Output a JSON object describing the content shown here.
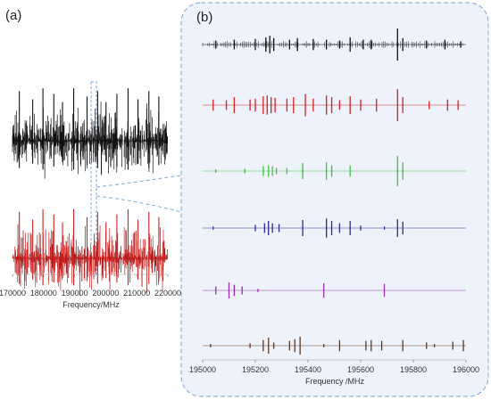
{
  "panel_a": {
    "label": "(a)",
    "xlabel": "Frequency/MHz"
  },
  "panel_b": {
    "label": "(b)",
    "xlabel": "Frequency /MHz"
  },
  "colors": {
    "black": "#111111",
    "red": "#d42020",
    "brown": "#8a3a2a",
    "green": "#3fbf3f",
    "blue": "#2b2b9a",
    "purple": "#9a2fb8",
    "dark_brown": "#5a3a2a",
    "zoom_box": "#7aa7d6",
    "zoom_fill": "#eef2fa"
  },
  "chart_data": [
    {
      "type": "line",
      "panel": "(a)",
      "xlabel": "Frequency/MHz",
      "xlim": [
        170000,
        220000
      ],
      "xticks": [
        170000,
        180000,
        190000,
        200000,
        210000,
        220000
      ],
      "series": [
        {
          "color": "black",
          "peaks": [
            [
              172200,
              0.9
            ],
            [
              176500,
              0.75
            ],
            [
              179800,
              0.95
            ],
            [
              183300,
              0.85
            ],
            [
              186100,
              0.7
            ],
            [
              189700,
              0.95
            ],
            [
              194000,
              0.8
            ],
            [
              197400,
              0.9
            ],
            [
              200100,
              0.7
            ],
            [
              203600,
              0.85
            ],
            [
              207200,
              0.95
            ],
            [
              210400,
              0.75
            ],
            [
              213900,
              0.9
            ],
            [
              217100,
              0.8
            ]
          ]
        },
        {
          "color": "red",
          "peaks": [
            [
              172200,
              0.9
            ],
            [
              176500,
              0.75
            ],
            [
              179800,
              0.95
            ],
            [
              183300,
              0.85
            ],
            [
              186100,
              0.7
            ],
            [
              189700,
              0.95
            ],
            [
              194000,
              0.8
            ],
            [
              197400,
              0.9
            ],
            [
              200100,
              0.7
            ],
            [
              203600,
              0.85
            ],
            [
              207200,
              0.95
            ],
            [
              210400,
              0.75
            ],
            [
              213900,
              0.9
            ],
            [
              217100,
              0.8
            ]
          ]
        }
      ],
      "zoom_region": [
        195000,
        196000
      ]
    },
    {
      "type": "line",
      "panel": "(b)",
      "xlabel": "Frequency /MHz",
      "xlim": [
        195000,
        196000
      ],
      "xticks": [
        195000,
        195200,
        195400,
        195600,
        195800,
        196000
      ],
      "series": [
        {
          "color": "black",
          "peaks": [
            [
              195050,
              0.25
            ],
            [
              195120,
              0.3
            ],
            [
              195200,
              0.35
            ],
            [
              195240,
              0.45
            ],
            [
              195255,
              0.55
            ],
            [
              195270,
              0.4
            ],
            [
              195330,
              0.3
            ],
            [
              195360,
              0.4
            ],
            [
              195420,
              0.35
            ],
            [
              195470,
              0.3
            ],
            [
              195520,
              0.25
            ],
            [
              195560,
              0.45
            ],
            [
              195610,
              0.3
            ],
            [
              195640,
              0.3
            ],
            [
              195740,
              1.0
            ],
            [
              195760,
              0.4
            ],
            [
              195850,
              0.25
            ],
            [
              195920,
              0.3
            ],
            [
              195980,
              0.2
            ]
          ]
        },
        {
          "color": "red",
          "peaks": [
            [
              195040,
              0.35
            ],
            [
              195090,
              0.3
            ],
            [
              195120,
              0.5
            ],
            [
              195180,
              0.35
            ],
            [
              195200,
              0.4
            ],
            [
              195230,
              0.55
            ],
            [
              195245,
              0.6
            ],
            [
              195260,
              0.5
            ],
            [
              195275,
              0.45
            ],
            [
              195320,
              0.4
            ],
            [
              195345,
              0.5
            ],
            [
              195390,
              0.7
            ],
            [
              195420,
              0.4
            ],
            [
              195470,
              0.6
            ],
            [
              195490,
              0.5
            ],
            [
              195520,
              0.3
            ],
            [
              195560,
              0.55
            ],
            [
              195600,
              0.35
            ],
            [
              195660,
              0.4
            ],
            [
              195740,
              1.0
            ],
            [
              195760,
              0.5
            ],
            [
              195860,
              0.25
            ],
            [
              195930,
              0.35
            ],
            [
              195970,
              0.3
            ]
          ]
        },
        {
          "color": "green",
          "peaks": [
            [
              195050,
              0.1
            ],
            [
              195160,
              0.15
            ],
            [
              195230,
              0.3
            ],
            [
              195250,
              0.35
            ],
            [
              195265,
              0.3
            ],
            [
              195280,
              0.2
            ],
            [
              195320,
              0.2
            ],
            [
              195380,
              0.5
            ],
            [
              195470,
              0.55
            ],
            [
              195490,
              0.35
            ],
            [
              195560,
              0.35
            ],
            [
              195740,
              0.95
            ],
            [
              195760,
              0.55
            ]
          ]
        },
        {
          "color": "blue",
          "peaks": [
            [
              195040,
              0.1
            ],
            [
              195200,
              0.2
            ],
            [
              195235,
              0.3
            ],
            [
              195250,
              0.45
            ],
            [
              195265,
              0.3
            ],
            [
              195290,
              0.25
            ],
            [
              195380,
              0.5
            ],
            [
              195470,
              0.6
            ],
            [
              195490,
              0.45
            ],
            [
              195520,
              0.3
            ],
            [
              195560,
              0.45
            ],
            [
              195600,
              0.15
            ],
            [
              195690,
              0.1
            ],
            [
              195740,
              0.55
            ],
            [
              195760,
              0.4
            ]
          ]
        },
        {
          "color": "purple",
          "peaks": [
            [
              195050,
              0.25
            ],
            [
              195100,
              0.5
            ],
            [
              195120,
              0.35
            ],
            [
              195150,
              0.25
            ],
            [
              195210,
              0.1
            ],
            [
              195460,
              0.45
            ],
            [
              195690,
              0.4
            ]
          ]
        },
        {
          "color": "dark_brown",
          "peaks": [
            [
              195030,
              0.1
            ],
            [
              195180,
              0.15
            ],
            [
              195230,
              0.35
            ],
            [
              195250,
              0.5
            ],
            [
              195270,
              0.2
            ],
            [
              195330,
              0.3
            ],
            [
              195350,
              0.4
            ],
            [
              195370,
              0.55
            ],
            [
              195460,
              0.1
            ],
            [
              195520,
              0.35
            ],
            [
              195620,
              0.3
            ],
            [
              195640,
              0.35
            ],
            [
              195680,
              0.3
            ],
            [
              195760,
              0.35
            ],
            [
              195850,
              0.2
            ],
            [
              195880,
              0.1
            ],
            [
              195950,
              0.25
            ],
            [
              195990,
              0.35
            ]
          ]
        }
      ]
    }
  ]
}
